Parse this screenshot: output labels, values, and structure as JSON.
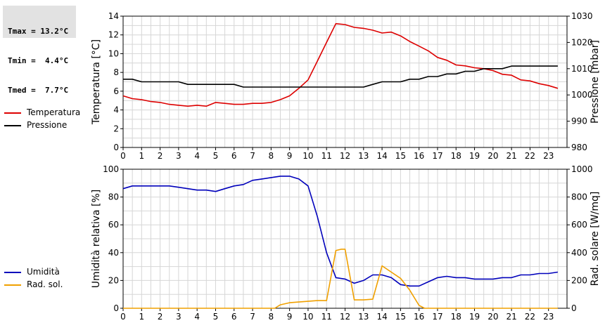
{
  "stats": {
    "tmax": "Tmax = 13.2°C",
    "tmin": "Tmin =  4.4°C",
    "tmed": "Tmed =  7.7°C"
  },
  "legend_top": [
    {
      "label": "Temperatura",
      "color": "#dd0000"
    },
    {
      "label": "Pressione",
      "color": "#000000"
    }
  ],
  "legend_bottom": [
    {
      "label": "Umidità",
      "color": "#0000bb"
    },
    {
      "label": "Rad. sol.",
      "color": "#f0a000"
    }
  ],
  "chart_data": [
    {
      "type": "line",
      "ylabel_left": "Temperatura [°C]",
      "ylabel_right": "Pressione [mbar]",
      "xlim": [
        0,
        24
      ],
      "ylim_left": [
        0,
        14
      ],
      "ylim_right": [
        980,
        1030
      ],
      "xticks": [
        "0",
        "1",
        "2",
        "3",
        "4",
        "5",
        "6",
        "7",
        "8",
        "9",
        "10",
        "11",
        "12",
        "13",
        "14",
        "15",
        "16",
        "17",
        "18",
        "19",
        "20",
        "21",
        "22",
        "23"
      ],
      "yticks_left": [
        "0",
        "2",
        "4",
        "6",
        "8",
        "10",
        "12",
        "14"
      ],
      "yticks_right": [
        "980",
        "990",
        "1000",
        "1010",
        "1020",
        "1030"
      ],
      "grid": true,
      "series": [
        {
          "name": "Temperatura",
          "axis": "left",
          "color": "#dd0000",
          "x": [
            0,
            0.5,
            1,
            1.5,
            2,
            2.5,
            3,
            3.5,
            4,
            4.5,
            5,
            5.5,
            6,
            6.5,
            7,
            7.5,
            8,
            8.5,
            9,
            9.5,
            10,
            10.5,
            11,
            11.5,
            12,
            12.5,
            13,
            13.5,
            14,
            14.5,
            15,
            15.5,
            16,
            16.5,
            17,
            17.5,
            18,
            18.5,
            19,
            19.5,
            20,
            20.5,
            21,
            21.5,
            22,
            22.5,
            23,
            23.5
          ],
          "y": [
            5.5,
            5.2,
            5.1,
            4.9,
            4.8,
            4.6,
            4.5,
            4.4,
            4.5,
            4.4,
            4.8,
            4.7,
            4.6,
            4.6,
            4.7,
            4.7,
            4.8,
            5.1,
            5.5,
            6.3,
            7.2,
            9.2,
            11.2,
            13.2,
            13.1,
            12.8,
            12.7,
            12.5,
            12.2,
            12.3,
            11.9,
            11.3,
            10.8,
            10.3,
            9.6,
            9.3,
            8.8,
            8.7,
            8.5,
            8.4,
            8.2,
            7.8,
            7.7,
            7.2,
            7.1,
            6.8,
            6.6,
            6.3
          ]
        },
        {
          "name": "Pressione",
          "axis": "right",
          "color": "#000000",
          "x": [
            0,
            0.5,
            1,
            1.5,
            2,
            2.5,
            3,
            3.5,
            4,
            4.5,
            5,
            5.5,
            6,
            6.5,
            7,
            7.5,
            8,
            8.5,
            9,
            9.5,
            10,
            10.5,
            11,
            11.5,
            12,
            12.5,
            13,
            13.5,
            14,
            14.5,
            15,
            15.5,
            16,
            16.5,
            17,
            17.5,
            18,
            18.5,
            19,
            19.5,
            20,
            20.5,
            21,
            21.5,
            22,
            22.5,
            23,
            23.5
          ],
          "y": [
            1006,
            1006,
            1005,
            1005,
            1005,
            1005,
            1005,
            1004,
            1004,
            1004,
            1004,
            1004,
            1004,
            1003,
            1003,
            1003,
            1003,
            1003,
            1003,
            1003,
            1003,
            1003,
            1003,
            1003,
            1003,
            1003,
            1003,
            1004,
            1005,
            1005,
            1005,
            1006,
            1006,
            1007,
            1007,
            1008,
            1008,
            1009,
            1009,
            1010,
            1010,
            1010,
            1011,
            1011,
            1011,
            1011,
            1011,
            1011
          ]
        }
      ]
    },
    {
      "type": "line",
      "ylabel_left": "Umidità relativa [%]",
      "ylabel_right": "Rad. solare [W/mq]",
      "xlim": [
        0,
        24
      ],
      "ylim_left": [
        0,
        100
      ],
      "ylim_right": [
        0,
        1000
      ],
      "xticks": [
        "0",
        "1",
        "2",
        "3",
        "4",
        "5",
        "6",
        "7",
        "8",
        "9",
        "10",
        "11",
        "12",
        "13",
        "14",
        "15",
        "16",
        "17",
        "18",
        "19",
        "20",
        "21",
        "22",
        "23"
      ],
      "yticks_left": [
        "0",
        "20",
        "40",
        "60",
        "80",
        "100"
      ],
      "yticks_right": [
        "0",
        "200",
        "400",
        "600",
        "800",
        "1000"
      ],
      "grid": true,
      "series": [
        {
          "name": "Umidità",
          "axis": "left",
          "color": "#0000bb",
          "x": [
            0,
            0.5,
            1,
            1.5,
            2,
            2.5,
            3,
            3.5,
            4,
            4.5,
            5,
            5.5,
            6,
            6.5,
            7,
            7.5,
            8,
            8.5,
            9,
            9.5,
            10,
            10.5,
            11,
            11.5,
            12,
            12.5,
            13,
            13.5,
            14,
            14.5,
            15,
            15.5,
            16,
            16.5,
            17,
            17.5,
            18,
            18.5,
            19,
            19.5,
            20,
            20.5,
            21,
            21.5,
            22,
            22.5,
            23,
            23.5
          ],
          "y": [
            86,
            88,
            88,
            88,
            88,
            88,
            87,
            86,
            85,
            85,
            84,
            86,
            88,
            89,
            92,
            93,
            94,
            95,
            95,
            93,
            88,
            66,
            40,
            22,
            21,
            18,
            20,
            24,
            24,
            22,
            17,
            16,
            16,
            19,
            22,
            23,
            22,
            22,
            21,
            21,
            21,
            22,
            22,
            24,
            24,
            25,
            25,
            26
          ]
        },
        {
          "name": "Rad. sol.",
          "axis": "right",
          "color": "#f0a000",
          "x": [
            0,
            0.5,
            1,
            1.5,
            2,
            2.5,
            3,
            3.5,
            4,
            4.5,
            5,
            5.5,
            6,
            6.5,
            7,
            7.5,
            8,
            8.2,
            8.5,
            9,
            9.5,
            10,
            10.5,
            11,
            11.5,
            11.8,
            12,
            12.5,
            13,
            13.5,
            14,
            14.5,
            15,
            15.5,
            16,
            16.3,
            17,
            18,
            19,
            20,
            21,
            22,
            23,
            23.5
          ],
          "y": [
            0,
            0,
            0,
            0,
            0,
            0,
            0,
            0,
            0,
            0,
            0,
            0,
            0,
            0,
            0,
            0,
            0,
            0,
            25,
            40,
            45,
            50,
            55,
            55,
            415,
            425,
            425,
            60,
            60,
            65,
            305,
            260,
            215,
            130,
            20,
            0,
            0,
            0,
            0,
            0,
            0,
            0,
            0,
            0
          ]
        }
      ]
    }
  ]
}
